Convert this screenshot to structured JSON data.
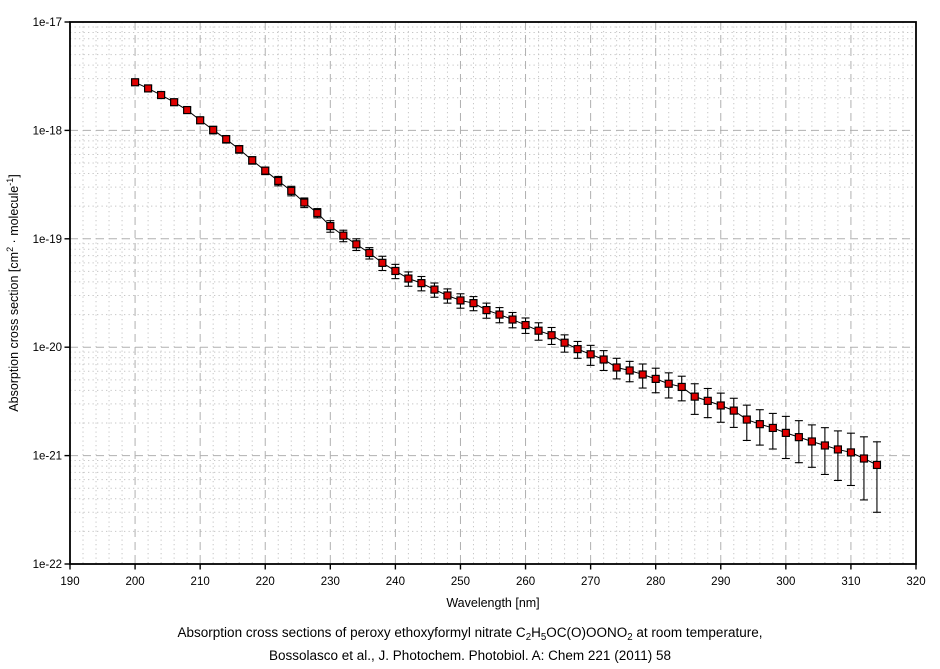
{
  "colors": {
    "background": "#ffffff",
    "frame": "#000000",
    "grid_major": "#b0b0b0",
    "grid_minor": "#c6c6c6",
    "tick": "#000000",
    "text": "#000000",
    "marker_fill": "#e00000",
    "marker_edge": "#000000",
    "error_bar": "#000000",
    "series_line": "#000000"
  },
  "y_label_parts": [
    {
      "t": "Absorption cross section [cm"
    },
    {
      "t": "2",
      "sup": true
    },
    {
      "t": " · molecule"
    },
    {
      "t": "-1",
      "sup": true
    },
    {
      "t": "]"
    }
  ],
  "caption": {
    "line1_parts": [
      {
        "t": "Absorption cross sections of peroxy ethoxyformyl nitrate C"
      },
      {
        "t": "2",
        "sub": true
      },
      {
        "t": "H"
      },
      {
        "t": "5",
        "sub": true
      },
      {
        "t": "OC(O)OONO"
      },
      {
        "t": "2",
        "sub": true
      },
      {
        "t": " at room temperature,"
      }
    ],
    "line2": "Bossolasco et al., J. Photochem. Photobiol. A: Chem 221 (2011) 58"
  },
  "chart_data": {
    "type": "scatter",
    "title": "",
    "xlabel": "Wavelength [nm]",
    "ylabel": "Absorption cross section [cm^2 · molecule^-1]",
    "xlim": [
      190,
      320
    ],
    "ylim": [
      1e-22,
      1e-17
    ],
    "y_scale": "log",
    "x_major_step": 10,
    "x_minor_step": 2,
    "grid": true,
    "legend": false,
    "x_tick_labels": [
      "190",
      "200",
      "210",
      "220",
      "230",
      "240",
      "250",
      "260",
      "270",
      "280",
      "290",
      "300",
      "310",
      "320"
    ],
    "y_tick_labels": [
      "1e-17",
      "1e-18",
      "1e-19",
      "1e-20",
      "1e-21",
      "1e-22"
    ],
    "series": [
      {
        "name": "C2H5OC(O)OONO2 absorption cross section",
        "marker": "filled-square",
        "x": [
          200,
          202,
          204,
          206,
          208,
          210,
          212,
          214,
          216,
          218,
          220,
          222,
          224,
          226,
          228,
          230,
          232,
          234,
          236,
          238,
          240,
          242,
          244,
          246,
          248,
          250,
          252,
          254,
          256,
          258,
          260,
          262,
          264,
          266,
          268,
          270,
          272,
          274,
          276,
          278,
          280,
          282,
          284,
          286,
          288,
          290,
          292,
          294,
          296,
          298,
          300,
          302,
          304,
          306,
          308,
          310,
          312,
          314
        ],
        "y": [
          2.78e-18,
          2.44e-18,
          2.12e-18,
          1.82e-18,
          1.54e-18,
          1.24e-18,
          1.01e-18,
          8.3e-19,
          6.7e-19,
          5.3e-19,
          4.25e-19,
          3.42e-19,
          2.77e-19,
          2.16e-19,
          1.73e-19,
          1.31e-19,
          1.07e-19,
          8.9e-20,
          7.4e-20,
          6e-20,
          5.05e-20,
          4.3e-20,
          3.9e-20,
          3.4e-20,
          3e-20,
          2.7e-20,
          2.55e-20,
          2.2e-20,
          2e-20,
          1.8e-20,
          1.6e-20,
          1.42e-20,
          1.29e-20,
          1.1e-20,
          9.6e-21,
          8.6e-21,
          7.7e-21,
          6.5e-21,
          6.1e-21,
          5.6e-21,
          5.1e-21,
          4.6e-21,
          4.3e-21,
          3.5e-21,
          3.2e-21,
          2.9e-21,
          2.6e-21,
          2.15e-21,
          1.95e-21,
          1.8e-21,
          1.62e-21,
          1.48e-21,
          1.35e-21,
          1.24e-21,
          1.14e-21,
          1.07e-21,
          9.4e-22,
          8.2e-22
        ],
        "y_err": [
          1.7e-19,
          1.5e-19,
          1.3e-19,
          1.1e-19,
          9.2e-20,
          7.4e-20,
          8.1e-20,
          6.6e-20,
          5.4e-20,
          4.2e-20,
          3.4e-20,
          3.4e-20,
          2.8e-20,
          2.2e-20,
          1.7e-20,
          1.6e-20,
          1.3e-20,
          1.1e-20,
          8.9e-21,
          9e-21,
          7.6e-21,
          6.5e-21,
          5.9e-21,
          5.1e-21,
          4.5e-21,
          4.1e-21,
          3.8e-21,
          3.5e-21,
          3.2e-21,
          2.9e-21,
          2.6e-21,
          2.6e-21,
          2.3e-21,
          2e-21,
          1.7e-21,
          1.8e-21,
          1.6e-21,
          1.4e-21,
          1.3e-21,
          1.4e-21,
          1.3e-21,
          1.2e-21,
          1.1e-21,
          1.1e-21,
          9.6e-22,
          8.7e-22,
          7.8e-22,
          7.7e-22,
          7e-22,
          6.5e-22,
          6.8e-22,
          6.2e-22,
          5.7e-22,
          5.7e-22,
          5.5e-22,
          5.4e-22,
          5.5e-22,
          5.2e-22
        ]
      }
    ]
  }
}
